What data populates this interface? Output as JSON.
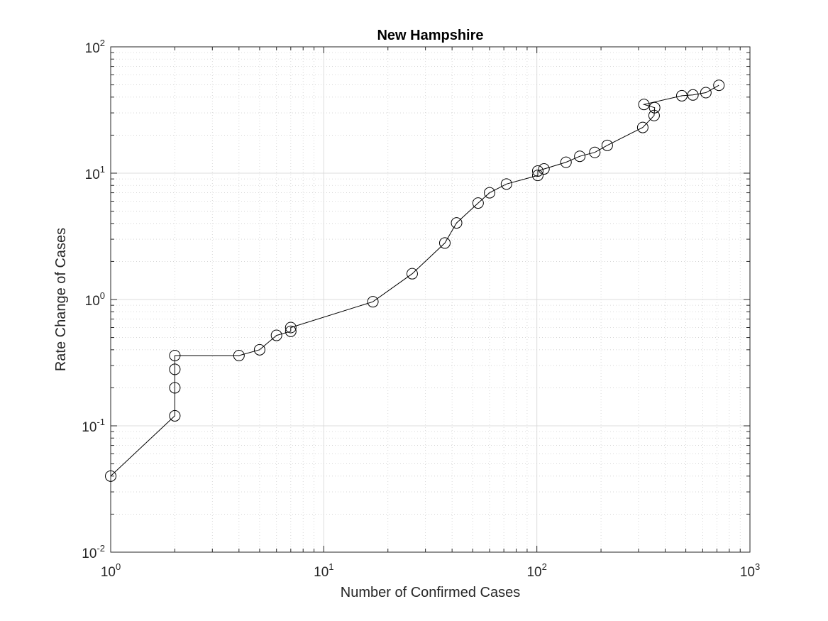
{
  "chart_data": {
    "type": "scatter",
    "title": "New Hampshire",
    "xlabel": "Number of Confirmed Cases",
    "ylabel": "Rate Change of Cases",
    "xscale": "log",
    "yscale": "log",
    "xlim": [
      1,
      1000
    ],
    "ylim": [
      0.01,
      100
    ],
    "grid": "on (major and minor, dotted)",
    "legend": "none",
    "marker": "open circle",
    "line_color": "#000000",
    "x_ticks": [
      {
        "base": "10",
        "exp": "0"
      },
      {
        "base": "10",
        "exp": "1"
      },
      {
        "base": "10",
        "exp": "2"
      },
      {
        "base": "10",
        "exp": "3"
      }
    ],
    "y_ticks": [
      {
        "base": "10",
        "exp": "-2"
      },
      {
        "base": "10",
        "exp": "-1"
      },
      {
        "base": "10",
        "exp": "0"
      },
      {
        "base": "10",
        "exp": "1"
      },
      {
        "base": "10",
        "exp": "2"
      }
    ],
    "series": [
      {
        "points": [
          [
            1,
            0.04
          ],
          [
            2,
            0.12
          ],
          [
            2,
            0.2
          ],
          [
            2,
            0.28
          ],
          [
            2,
            0.36
          ],
          [
            4,
            0.36
          ],
          [
            5,
            0.4
          ],
          [
            6,
            0.52
          ],
          [
            7,
            0.56
          ],
          [
            7,
            0.6
          ],
          [
            17,
            0.96
          ],
          [
            26,
            1.6
          ],
          [
            37,
            2.8
          ],
          [
            42,
            4.04
          ],
          [
            53,
            5.8
          ],
          [
            60,
            7.0
          ],
          [
            72,
            8.2
          ],
          [
            101,
            9.6
          ],
          [
            101,
            10.4
          ],
          [
            108,
            10.8
          ],
          [
            137,
            12.2
          ],
          [
            159,
            13.6
          ],
          [
            187,
            14.6
          ],
          [
            214,
            16.6
          ],
          [
            314,
            23.0
          ],
          [
            355,
            28.6
          ],
          [
            357,
            33.0
          ],
          [
            318,
            35.0
          ],
          [
            479,
            41.0
          ],
          [
            540,
            41.6
          ],
          [
            621,
            43.4
          ],
          [
            715,
            49.6
          ]
        ]
      }
    ]
  }
}
